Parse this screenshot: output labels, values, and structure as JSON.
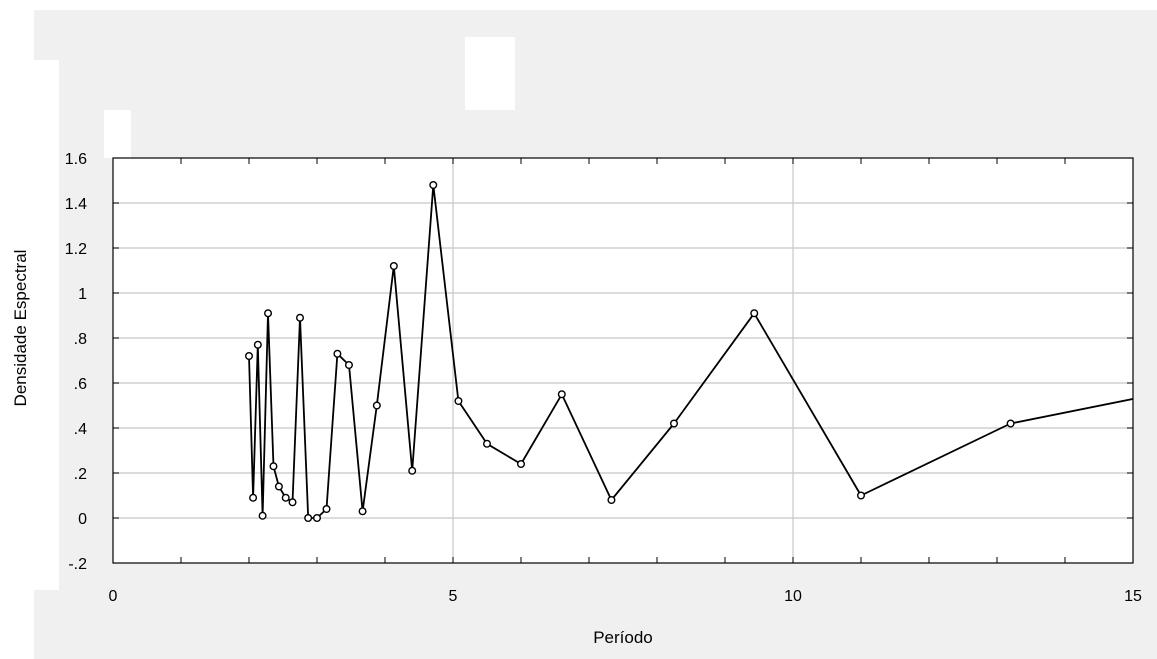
{
  "chart_data": {
    "type": "line",
    "title": "",
    "xlabel": "Período",
    "ylabel": "Densidade Espectral",
    "xlim": [
      0,
      15
    ],
    "ylim": [
      -0.2,
      1.6
    ],
    "x_ticks": [
      0,
      5,
      10,
      15
    ],
    "x_tick_labels": [
      "0",
      "5",
      "10",
      "15"
    ],
    "y_ticks": [
      -0.2,
      0,
      0.2,
      0.4,
      0.6,
      0.8,
      1,
      1.2,
      1.4,
      1.6
    ],
    "y_tick_labels": [
      "-.2",
      "0",
      ".2",
      ".4",
      ".6",
      ".8",
      "1",
      "1.2",
      "1.4",
      "1.6"
    ],
    "grid": true,
    "marker": "open-circle",
    "series": [
      {
        "x": [
          2.0,
          2.06,
          2.13,
          2.2,
          2.28,
          2.36,
          2.44,
          2.54,
          2.64,
          2.75,
          2.87,
          3.0,
          3.14,
          3.3,
          3.47,
          3.67,
          3.88,
          4.13,
          4.4,
          4.71,
          5.08,
          5.5,
          6.0,
          6.6,
          7.33,
          8.25,
          9.43,
          11.0,
          13.2,
          16.5
        ],
        "y": [
          0.72,
          0.09,
          0.77,
          0.01,
          0.91,
          0.23,
          0.14,
          0.09,
          0.07,
          0.89,
          0.0,
          0.0,
          0.04,
          0.73,
          0.68,
          0.03,
          0.5,
          1.12,
          0.21,
          1.48,
          0.52,
          0.33,
          0.24,
          0.55,
          0.08,
          0.42,
          0.91,
          0.1,
          0.42,
          0.62
        ]
      }
    ],
    "colors": {
      "line": "#000000",
      "grid": "#c8c8c8",
      "frame": "#000000",
      "plot_bg": "#ffffff",
      "outer_bg": "#f0f0f0"
    }
  }
}
